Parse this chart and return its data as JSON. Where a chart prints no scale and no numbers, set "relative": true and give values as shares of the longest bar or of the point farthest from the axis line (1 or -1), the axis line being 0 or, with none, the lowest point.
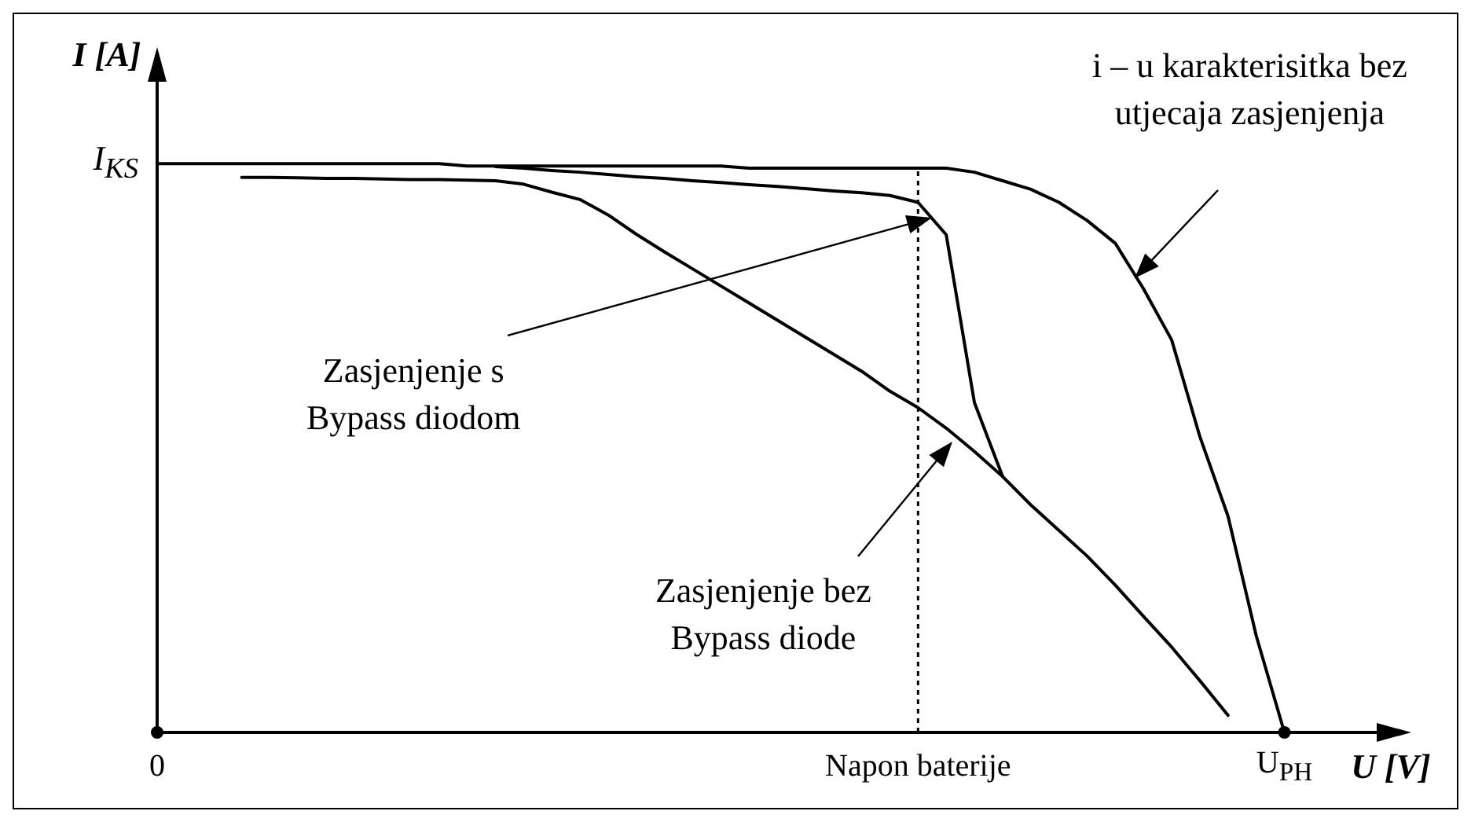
{
  "chart_data": {
    "type": "line",
    "relative": true,
    "xlabel": "U [V]",
    "ylabel": "I [A]",
    "categories": [
      "0",
      null,
      null,
      null,
      null,
      null,
      null,
      null,
      null,
      null,
      null,
      null,
      null,
      null,
      null,
      null,
      null,
      null,
      null,
      null,
      null,
      null,
      null,
      null,
      null,
      null,
      null,
      "Napon baterije",
      null,
      null,
      null,
      null,
      null,
      null,
      null,
      null,
      null,
      null,
      null,
      null,
      "U$_{PH}$",
      null,
      null,
      null,
      null
    ],
    "series": [
      {
        "color": "#000000",
        "values": [
          1,
          1,
          1,
          1,
          1,
          1,
          1,
          1,
          1,
          1,
          1,
          0.996,
          0.996,
          0.996,
          0.996,
          0.996,
          0.996,
          0.996,
          0.996,
          0.996,
          0.996,
          0.992,
          0.992,
          0.992,
          0.992,
          0.992,
          0.992,
          0.992,
          0.992,
          0.985,
          0.97,
          0.955,
          0.932,
          0.9,
          0.86,
          0.78,
          0.69,
          0.52,
          0.38,
          0.17,
          0,
          null,
          null,
          null,
          null
        ]
      },
      {
        "color": "#000000",
        "values": [
          null,
          null,
          null,
          null,
          null,
          null,
          null,
          null,
          null,
          null,
          null,
          null,
          0.995,
          0.992,
          0.988,
          0.985,
          0.981,
          0.977,
          0.974,
          0.97,
          0.967,
          0.963,
          0.96,
          0.956,
          0.952,
          0.949,
          0.944,
          0.932,
          0.875,
          0.58,
          0.45,
          null,
          null,
          null,
          null,
          null,
          null,
          null,
          null,
          null,
          null,
          null,
          null,
          null,
          null
        ]
      },
      {
        "color": "#000000",
        "values": [
          null,
          null,
          null,
          0.976,
          0.976,
          0.975,
          0.974,
          0.974,
          0.973,
          0.972,
          0.972,
          0.971,
          0.97,
          0.964,
          0.95,
          0.937,
          0.91,
          0.876,
          0.845,
          0.815,
          0.785,
          0.755,
          0.725,
          0.695,
          0.665,
          0.635,
          0.6,
          0.571,
          0.535,
          0.494,
          0.45,
          0.4,
          0.355,
          0.31,
          0.259,
          0.204,
          0.15,
          0.091,
          0.03,
          null,
          null,
          null,
          null,
          null,
          null
        ]
      }
    ],
    "ref_lines": [
      {
        "axis": "x",
        "value": "Napon baterije",
        "line_style": "dotted",
        "color": "#000000"
      }
    ],
    "annotations": [
      "I$_{KS}$",
      "i – u karakterisitka bez utjecaja zasjenjenja",
      "Zasjenjenje s Bypass diodom",
      "Zasjenjenje bez Bypass diode"
    ],
    "legend": false,
    "marker": "none",
    "line_style": "solid"
  }
}
